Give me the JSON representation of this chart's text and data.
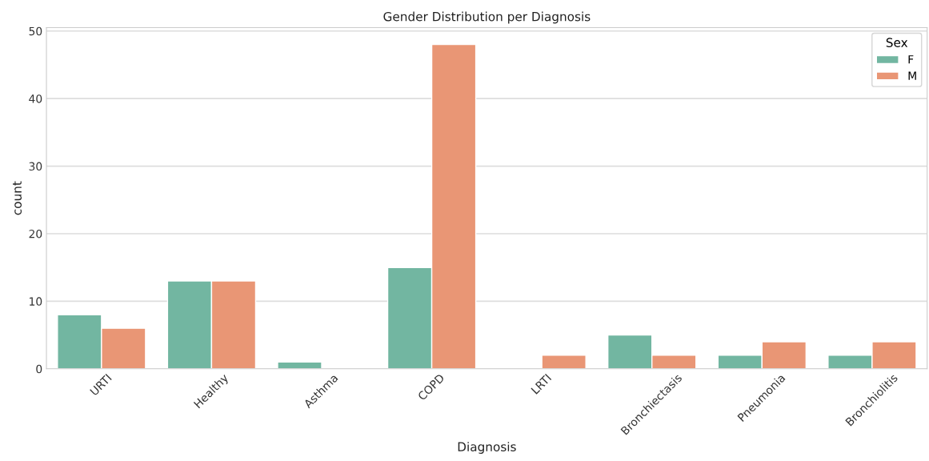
{
  "chart_data": {
    "type": "bar",
    "title": "Gender Distribution per Diagnosis",
    "xlabel": "Diagnosis",
    "ylabel": "count",
    "legend_title": "Sex",
    "categories": [
      "URTI",
      "Healthy",
      "Asthma",
      "COPD",
      "LRTI",
      "Bronchiectasis",
      "Pneumonia",
      "Bronchiolitis"
    ],
    "series": [
      {
        "name": "F",
        "color": "#72b6a1",
        "values": [
          8,
          13,
          1,
          15,
          null,
          5,
          2,
          2
        ]
      },
      {
        "name": "M",
        "color": "#e99675",
        "values": [
          6,
          13,
          null,
          48,
          2,
          2,
          4,
          4
        ]
      }
    ],
    "ylim": [
      0,
      50.5
    ],
    "yticks": [
      0,
      10,
      20,
      30,
      40,
      50
    ],
    "grid": "y",
    "legend": "top right"
  }
}
